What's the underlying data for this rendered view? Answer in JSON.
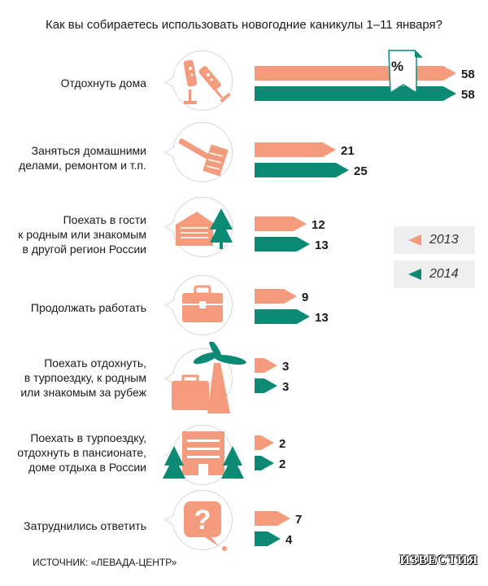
{
  "title": "Как вы собираетесь использовать новогодние каникулы 1–11 января?",
  "percent_sign": "%",
  "source": "ИСТОЧНИК: «ЛЕВАДА-ЦЕНТР»",
  "brand": "ИЗВЕСТИЯ",
  "colors": {
    "y2013": "#f39b7c",
    "y2014": "#0d8a74"
  },
  "legend": [
    {
      "label": "2013"
    },
    {
      "label": "2014"
    }
  ],
  "categories": [
    {
      "lines": [
        "Отдохнуть дома"
      ],
      "icon": "champagne-glasses-icon"
    },
    {
      "lines": [
        "Заняться домашними",
        "делами, ремонтом и т.п."
      ],
      "icon": "paint-roller-icon"
    },
    {
      "lines": [
        "Поехать в гости",
        "к родным или знакомым",
        "в другой регион России"
      ],
      "icon": "house-tree-icon"
    },
    {
      "lines": [
        "Продолжать работать"
      ],
      "icon": "briefcase-icon"
    },
    {
      "lines": [
        "Поехать отдохнуть,",
        "в турпоездку, к родным",
        "или знакомым за рубеж"
      ],
      "icon": "palm-suitcase-icon"
    },
    {
      "lines": [
        "Поехать в турпоездку,",
        "отдохнуть в пансионате,",
        "доме отдыха в России"
      ],
      "icon": "hotel-trees-icon"
    },
    {
      "lines": [
        "Затруднились ответить"
      ],
      "icon": "question-mark-icon"
    }
  ],
  "chart_data": {
    "type": "bar",
    "title": "Как вы собираетесь использовать новогодние каникулы 1–11 января?",
    "categories": [
      "Отдохнуть дома",
      "Заняться домашними делами, ремонтом и т.п.",
      "Поехать в гости к родным или знакомым в другой регион России",
      "Продолжать работать",
      "Поехать отдохнуть, в турпоездку, к родным или знакомым за рубеж",
      "Поехать в турпоездку, отдохнуть в пансионате, доме отдыха в России",
      "Затруднились ответить"
    ],
    "series": [
      {
        "name": "2013",
        "values": [
          58,
          21,
          12,
          9,
          3,
          2,
          7
        ]
      },
      {
        "name": "2014",
        "values": [
          58,
          25,
          13,
          13,
          3,
          2,
          4
        ]
      }
    ],
    "unit": "%",
    "legend": "right"
  }
}
